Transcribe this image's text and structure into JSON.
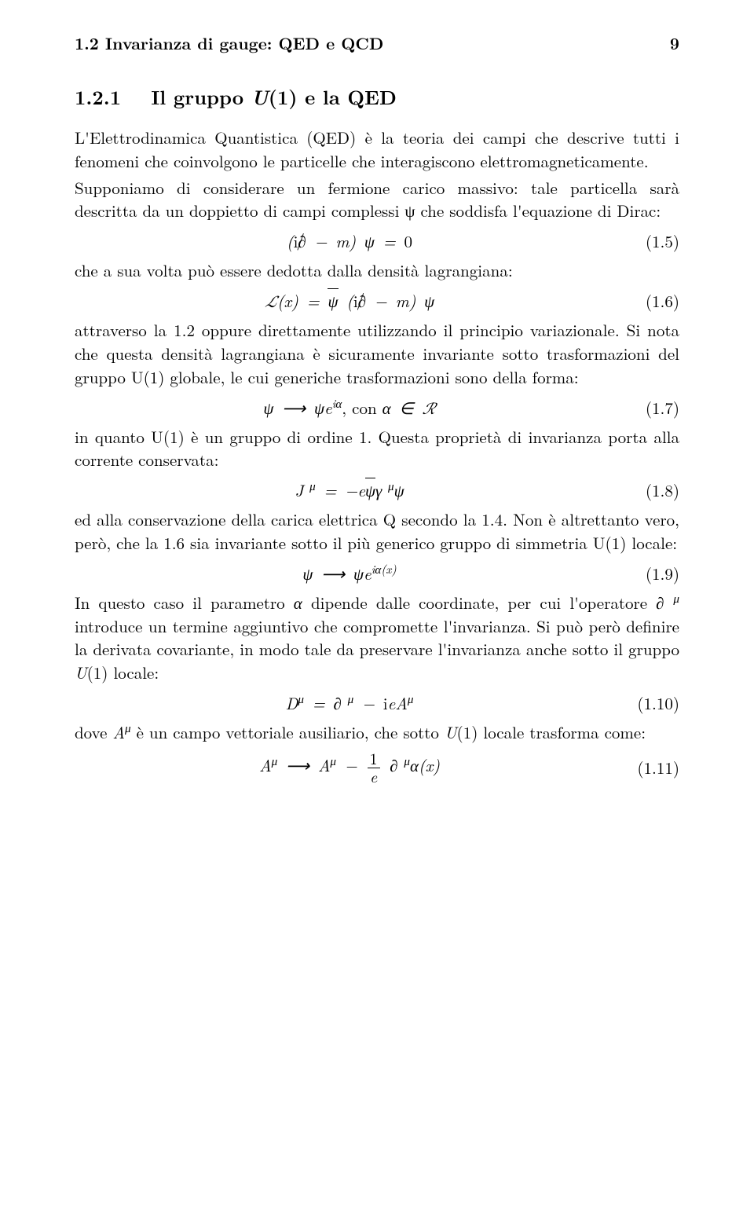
{
  "header": {
    "running_title": "1.2 Invarianza di gauge: QED e QCD",
    "page_number": "9"
  },
  "section": {
    "number": "1.2.1",
    "title_html": "Il gruppo <i>U</i>(1) e la QED"
  },
  "paragraphs": {
    "p1": "L'Elettrodinamica Quantistica (QED) è la teoria dei campi che descrive tutti i fenomeni che coinvolgono le particelle che interagiscono elettromagneticamente.",
    "p2": "Supponiamo di considerare un fermione carico massivo: tale particella sarà descritta da un doppietto di campi complessi ψ che soddisfa l'equazione di Dirac:",
    "p3": "che a sua volta può essere dedotta dalla densità lagrangiana:",
    "p4": "attraverso la 1.2 oppure direttamente utilizzando il principio variazionale. Si nota che questa densità lagrangiana è sicuramente invariante sotto trasformazioni del gruppo U(1) globale, le cui generiche trasformazioni sono della forma:",
    "p5": "in quanto U(1) è un gruppo di ordine 1. Questa proprietà di invarianza porta alla corrente conservata:",
    "p6": "ed alla conservazione della carica elettrica Q secondo la 1.4. Non è altrettanto vero, però, che la 1.6 sia invariante sotto il più generico gruppo di simmetria U(1) locale:",
    "p7_html": "In questo caso il parametro <i>α</i> dipende dalle coordinate, per cui l'operatore <i>∂<sup>&nbsp;μ</sup></i> introduce un termine aggiuntivo che compromette l'invarianza. Si può però definire la derivata covariante, in modo tale da preservare l'invarianza anche sotto il gruppo <i>U</i>(1) locale:",
    "p8_html": "dove <i>A<sup>μ</sup></i> è un campo vettoriale ausiliario, che sotto <i>U</i>(1) locale trasforma come:"
  },
  "equations": {
    "eq5": {
      "num": "(1.5)"
    },
    "eq6": {
      "num": "(1.6)"
    },
    "eq7": {
      "num": "(1.7)"
    },
    "eq8": {
      "num": "(1.8)"
    },
    "eq9": {
      "num": "(1.9)"
    },
    "eq10": {
      "num": "(1.10)"
    },
    "eq11": {
      "num": "(1.11)"
    }
  }
}
